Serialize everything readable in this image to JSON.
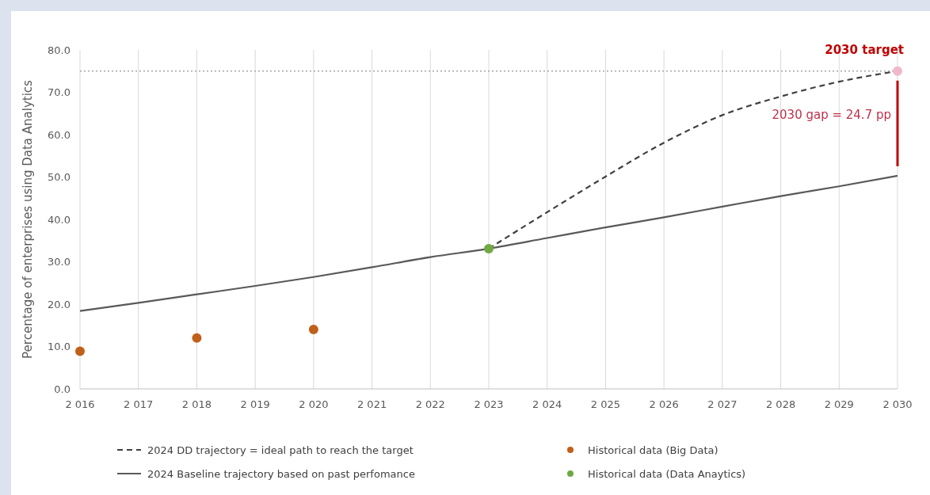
{
  "chart_data": {
    "type": "line",
    "ylabel": "Percentage of enterprises using Data Analytics",
    "xlim": [
      2016,
      2030
    ],
    "xticks": [
      {
        "value": 2016,
        "label": "2 016"
      },
      {
        "value": 2017,
        "label": "2 017"
      },
      {
        "value": 2018,
        "label": "2 018"
      },
      {
        "value": 2019,
        "label": "2 019"
      },
      {
        "value": 2020,
        "label": "2 020"
      },
      {
        "value": 2021,
        "label": "2 021"
      },
      {
        "value": 2022,
        "label": "2 022"
      },
      {
        "value": 2023,
        "label": "2 023"
      },
      {
        "value": 2024,
        "label": "2 024"
      },
      {
        "value": 2025,
        "label": "2 025"
      },
      {
        "value": 2026,
        "label": "2 026"
      },
      {
        "value": 2027,
        "label": "2 027"
      },
      {
        "value": 2028,
        "label": "2 028"
      },
      {
        "value": 2029,
        "label": "2 029"
      },
      {
        "value": 2030,
        "label": "2 030"
      }
    ],
    "ylim": [
      0,
      80
    ],
    "yticks": [
      {
        "value": 0,
        "label": "0.0"
      },
      {
        "value": 10,
        "label": "10.0"
      },
      {
        "value": 20,
        "label": "20.0"
      },
      {
        "value": 30,
        "label": "30.0"
      },
      {
        "value": 40,
        "label": "40.0"
      },
      {
        "value": 50,
        "label": "50.0"
      },
      {
        "value": 60,
        "label": "60.0"
      },
      {
        "value": 70,
        "label": "70.0"
      },
      {
        "value": 80,
        "label": "80.0"
      }
    ],
    "grid": "x",
    "legend": "bottom",
    "series": [
      {
        "type": "line",
        "name": "2024 DD trajectory = ideal path to reach the target",
        "color": "#404040",
        "line_style": "dashed",
        "x": [
          2023,
          2024,
          2025,
          2026,
          2027,
          2028,
          2029,
          2030
        ],
        "values": [
          33.1,
          41.7,
          50.1,
          58.1,
          64.6,
          69.0,
          72.5,
          75.0
        ]
      },
      {
        "type": "line",
        "name": "2024 Baseline trajectory based on past perfomance",
        "color": "#595959",
        "line_style": "solid",
        "x": [
          2016,
          2017,
          2018,
          2019,
          2020,
          2021,
          2022,
          2023,
          2024,
          2025,
          2026,
          2027,
          2028,
          2029,
          2030
        ],
        "values": [
          18.4,
          20.3,
          22.3,
          24.3,
          26.4,
          28.7,
          31.1,
          33.1,
          35.6,
          38.1,
          40.5,
          43.0,
          45.5,
          47.8,
          50.3
        ]
      },
      {
        "type": "scatter",
        "name": "Historical data (Big Data)",
        "color": "#c0601a",
        "marker": "circle",
        "x": [
          2016,
          2018,
          2020
        ],
        "values": [
          8.9,
          12.0,
          14.0
        ]
      },
      {
        "type": "scatter",
        "name": "Historical data (Data Anaytics)",
        "color": "#70a844",
        "marker": "circle",
        "x": [
          2023
        ],
        "values": [
          33.1
        ]
      },
      {
        "type": "scatter",
        "color": "#f0b8c8",
        "marker": "circle",
        "x": [
          2030
        ],
        "values": [
          75.0
        ]
      }
    ],
    "ref_lines": [
      {
        "axis": "y",
        "value": 75,
        "color": "#a6a6a6",
        "line_style": "dotted"
      }
    ],
    "annotations": [
      {
        "text": "2030 target",
        "x": 2030,
        "y": 75
      },
      "2030 gap = 24.7 pp"
    ]
  }
}
